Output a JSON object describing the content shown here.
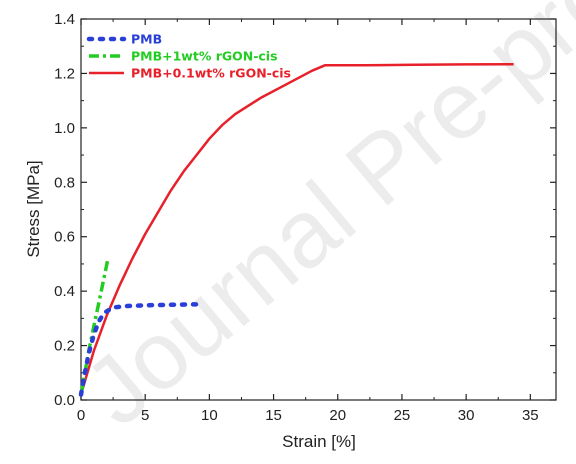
{
  "watermark": "Journal Pre-proof",
  "chart_data": {
    "type": "line",
    "title": "",
    "xlabel": "Strain [%]",
    "ylabel": "Stress [MPa]",
    "xlim": [
      0,
      37
    ],
    "ylim": [
      0,
      1.4
    ],
    "xticks": [
      0,
      5,
      10,
      15,
      20,
      25,
      30,
      35
    ],
    "yticks": [
      0.0,
      0.2,
      0.4,
      0.6,
      0.8,
      1.0,
      1.2,
      1.4
    ],
    "xtick_labels": [
      "0",
      "5",
      "10",
      "15",
      "20",
      "25",
      "30",
      "35"
    ],
    "ytick_labels": [
      "0.0",
      "0.2",
      "0.4",
      "0.6",
      "0.8",
      "1.0",
      "1.2",
      "1.4"
    ],
    "grid": false,
    "legend_position": "top-left",
    "series": [
      {
        "name": "PMB",
        "color": "#2a3fd8",
        "style": "dotted",
        "x": [
          0,
          0.3,
          0.6,
          1.0,
          1.4,
          1.8,
          2.5,
          3.5,
          5,
          7,
          9.5
        ],
        "y": [
          0.02,
          0.1,
          0.17,
          0.24,
          0.29,
          0.32,
          0.34,
          0.345,
          0.348,
          0.35,
          0.352
        ]
      },
      {
        "name": "PMB+1wt% rGON-cis",
        "color": "#22cc22",
        "style": "dashdot",
        "x": [
          0,
          0.3,
          0.6,
          1.0,
          1.4,
          1.8,
          2.1
        ],
        "y": [
          0.02,
          0.1,
          0.18,
          0.27,
          0.36,
          0.45,
          0.52
        ]
      },
      {
        "name": "PMB+0.1wt% rGON-cis",
        "color": "#e8202a",
        "style": "solid",
        "x": [
          0,
          0.5,
          1,
          2,
          3,
          4,
          5,
          6,
          7,
          8,
          9,
          10,
          11,
          12,
          14,
          16,
          18,
          19,
          22,
          26,
          30,
          33.7
        ],
        "y": [
          0.02,
          0.1,
          0.18,
          0.31,
          0.42,
          0.52,
          0.61,
          0.69,
          0.77,
          0.84,
          0.9,
          0.96,
          1.01,
          1.05,
          1.11,
          1.16,
          1.21,
          1.23,
          1.23,
          1.232,
          1.233,
          1.234
        ]
      }
    ]
  }
}
